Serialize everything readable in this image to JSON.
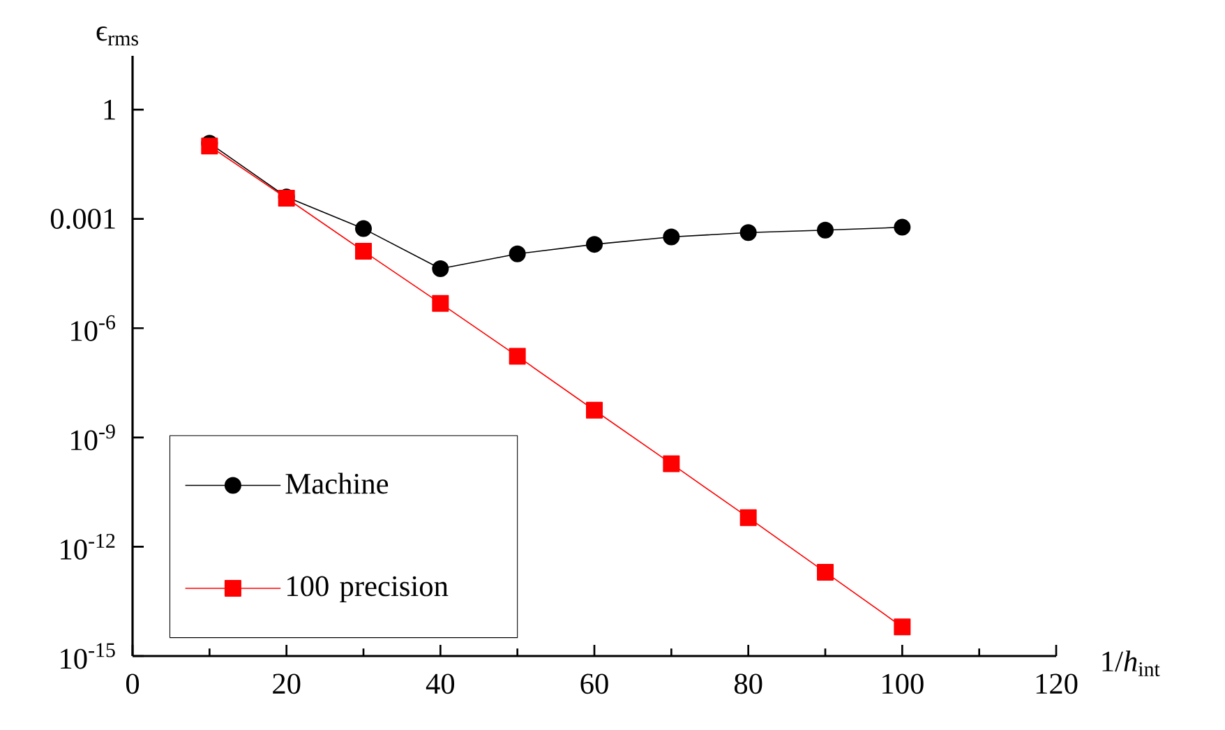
{
  "chart_data": {
    "type": "line",
    "xlabel": "1/*h*$_{int}$",
    "ylabel": "ϵ$_{rms}$",
    "log": "y",
    "legend": "bottom left",
    "grid": false,
    "line_style": "solid",
    "x": [
      10,
      20,
      30,
      40,
      50,
      60,
      70,
      80,
      90,
      100
    ],
    "xlim": [
      0,
      120
    ],
    "xticks": [
      0,
      20,
      40,
      60,
      80,
      100,
      120
    ],
    "ylim": [
      1e-15,
      30
    ],
    "yticks": [
      1,
      0.001,
      {
        "value": 1e-06,
        "label": "10$^{-6}$"
      },
      {
        "value": 1e-09,
        "label": "10$^{-9}$"
      },
      {
        "value": 1e-12,
        "label": "10$^{-12}$"
      },
      {
        "value": 1e-15,
        "label": "10$^{-15}$"
      }
    ],
    "series": [
      {
        "name": "Machine",
        "color": "#000000",
        "marker": "circle",
        "values": [
          0.12,
          0.004,
          0.00054,
          4.3e-05,
          0.00011,
          0.0002,
          0.00032,
          0.00042,
          0.00049,
          0.00059
        ]
      },
      {
        "name": "100 precision",
        "color": "#ff0000",
        "marker": "square",
        "values": [
          0.1,
          0.0037,
          0.00013,
          4.8e-06,
          1.7e-07,
          5.6e-09,
          1.9e-10,
          6.3e-12,
          2e-13,
          6.3e-15
        ]
      }
    ]
  }
}
